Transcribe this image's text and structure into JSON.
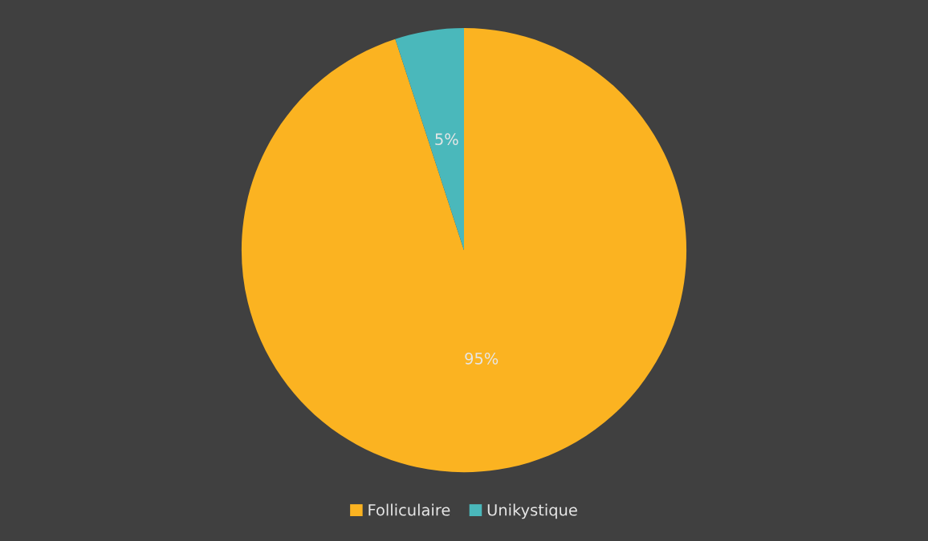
{
  "chart_data": {
    "type": "pie",
    "categories": [
      "Folliculaire",
      "Unikystique"
    ],
    "values": [
      95,
      5
    ],
    "colors": [
      "#fbb321",
      "#4ab8bb"
    ],
    "value_labels": [
      "95%",
      "5%"
    ],
    "legend": "bottom"
  }
}
